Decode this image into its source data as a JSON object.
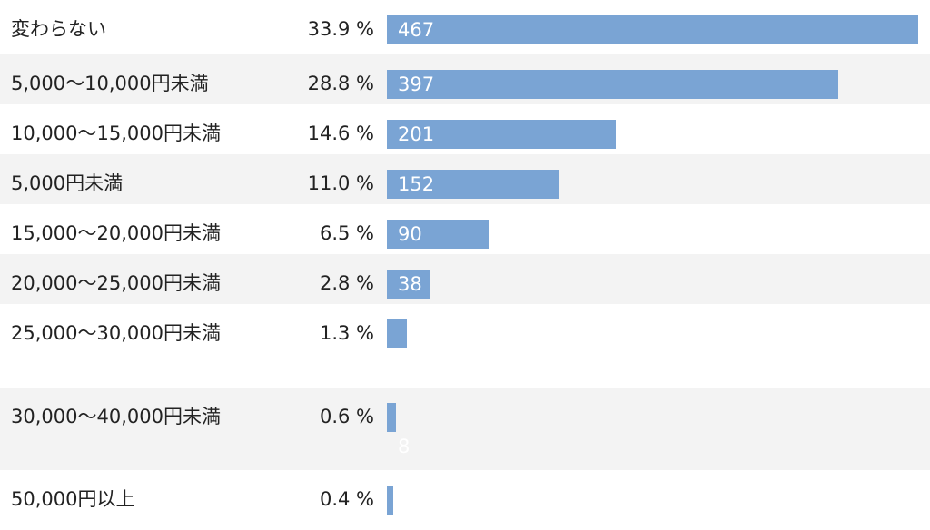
{
  "chart_data": {
    "type": "bar",
    "orientation": "horizontal",
    "categories": [
      "変わらない",
      "5,000〜10,000円未満",
      "10,000〜15,000円未満",
      "5,000円未満",
      "15,000〜20,000円未満",
      "20,000〜25,000円未満",
      "25,000〜30,000円未満",
      "30,000〜40,000円未満",
      "50,000円以上"
    ],
    "percent_labels": [
      "33.9 %",
      "28.8 %",
      "14.6 %",
      "11.0 %",
      "6.5 %",
      "2.8 %",
      "1.3 %",
      "0.6 %",
      "0.4 %"
    ],
    "percents": [
      33.9,
      28.8,
      14.6,
      11.0,
      6.5,
      2.8,
      1.3,
      0.6,
      0.4
    ],
    "values": [
      467,
      397,
      201,
      152,
      90,
      38,
      null,
      8,
      null
    ],
    "count_labels": [
      "467",
      "397",
      "201",
      "152",
      "90",
      "38",
      "",
      "8",
      ""
    ],
    "xlim": [
      0,
      467
    ],
    "bar_color": "#7aa4d4",
    "row_shading": [
      "#ffffff",
      "#f3f3f3"
    ],
    "grid": false,
    "legend": "none"
  }
}
